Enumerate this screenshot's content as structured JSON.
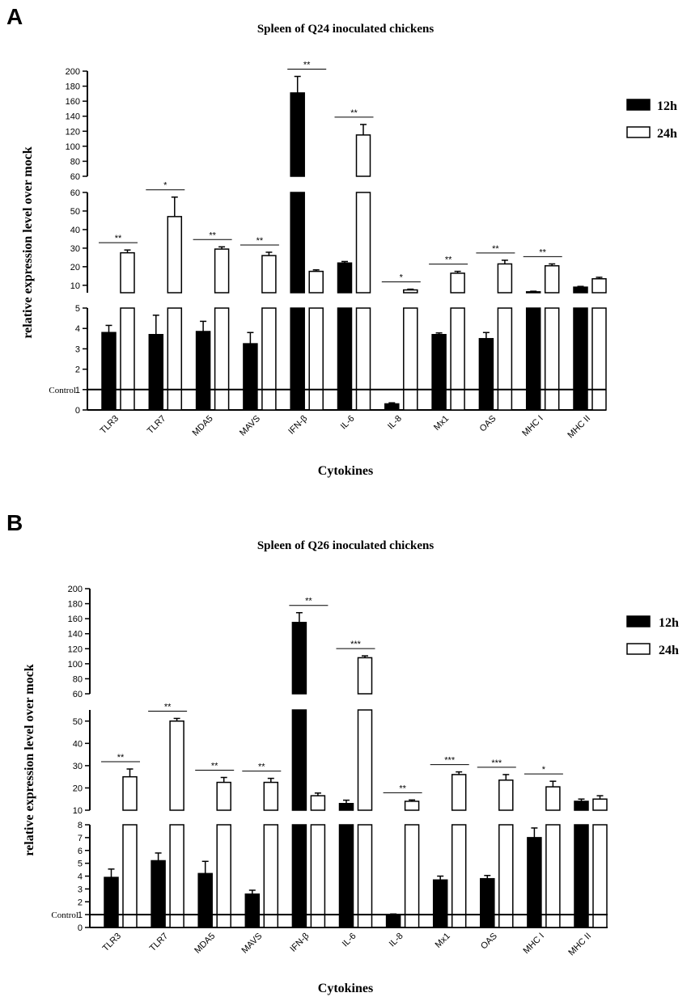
{
  "chart_data": [
    {
      "type": "bar",
      "panel": "A",
      "title": "Spleen of Q24 inoculated chickens",
      "xlabel": "Cytokines",
      "ylabel": "relative expression level over mock",
      "control_label": "Control",
      "control_value": 1,
      "categories": [
        "TLR3",
        "TLR7",
        "MDA5",
        "MAVS",
        "IFN-β",
        "IL-6",
        "IL-8",
        "Mx1",
        "OAS",
        "MHC I",
        "MHC II"
      ],
      "series": [
        {
          "name": "12h",
          "fill": "#000000",
          "values": [
            3.8,
            3.7,
            3.85,
            3.25,
            171,
            22,
            0.3,
            3.7,
            3.5,
            6.5,
            9
          ],
          "errors": [
            0.35,
            0.95,
            0.5,
            0.55,
            22,
            0.8,
            0.05,
            0.08,
            0.3,
            0.3,
            0.4
          ]
        },
        {
          "name": "24h",
          "fill": "#ffffff",
          "values": [
            27.5,
            47,
            29.5,
            26,
            17.5,
            115,
            7.5,
            16.5,
            21.5,
            20.5,
            13.5
          ],
          "errors": [
            1.5,
            10.5,
            1.2,
            1.8,
            0.8,
            14,
            0.4,
            1.0,
            2.0,
            1.0,
            0.8
          ]
        }
      ],
      "significance": [
        "**",
        "*",
        "**",
        "**",
        "**",
        "**",
        "*",
        "**",
        "**",
        "**",
        ""
      ],
      "segments": [
        {
          "range": [
            0,
            5
          ],
          "ticks": [
            0,
            1,
            2,
            3,
            4,
            5
          ]
        },
        {
          "range": [
            6,
            60
          ],
          "ticks": [
            10,
            20,
            30,
            40,
            50,
            60
          ]
        },
        {
          "range": [
            60,
            200
          ],
          "ticks": [
            60,
            80,
            100,
            120,
            140,
            160,
            180,
            200
          ]
        }
      ]
    },
    {
      "type": "bar",
      "panel": "B",
      "title": "Spleen of Q26 inoculated chickens",
      "xlabel": "Cytokines",
      "ylabel": "relative expression level over mock",
      "control_label": "Control",
      "control_value": 1,
      "categories": [
        "TLR3",
        "TLR7",
        "MDA5",
        "MAVS",
        "IFN-β",
        "IL-6",
        "IL-8",
        "Mx1",
        "OAS",
        "MHC I",
        "MHC II"
      ],
      "series": [
        {
          "name": "12h",
          "fill": "#000000",
          "values": [
            3.9,
            5.2,
            4.2,
            2.6,
            155,
            13,
            1,
            3.7,
            3.8,
            7.0,
            14
          ],
          "errors": [
            0.65,
            0.6,
            0.95,
            0.3,
            13,
            1.5,
            0.05,
            0.3,
            0.25,
            0.75,
            1.0
          ]
        },
        {
          "name": "24h",
          "fill": "#ffffff",
          "values": [
            25,
            50,
            22.5,
            22.5,
            16.5,
            108,
            14,
            26,
            23.5,
            20.5,
            15
          ],
          "errors": [
            3.5,
            1.2,
            2.2,
            1.8,
            1.2,
            2.5,
            0.6,
            1.2,
            2.5,
            2.5,
            1.5
          ]
        }
      ],
      "significance": [
        "**",
        "**",
        "**",
        "**",
        "**",
        "***",
        "**",
        "***",
        "***",
        "*",
        ""
      ],
      "segments": [
        {
          "range": [
            0,
            8
          ],
          "ticks": [
            0,
            1,
            2,
            3,
            4,
            5,
            6,
            7,
            8
          ]
        },
        {
          "range": [
            10,
            55
          ],
          "ticks": [
            10,
            20,
            30,
            40,
            50
          ]
        },
        {
          "range": [
            60,
            200
          ],
          "ticks": [
            60,
            80,
            100,
            120,
            140,
            160,
            180,
            200
          ]
        }
      ]
    }
  ]
}
